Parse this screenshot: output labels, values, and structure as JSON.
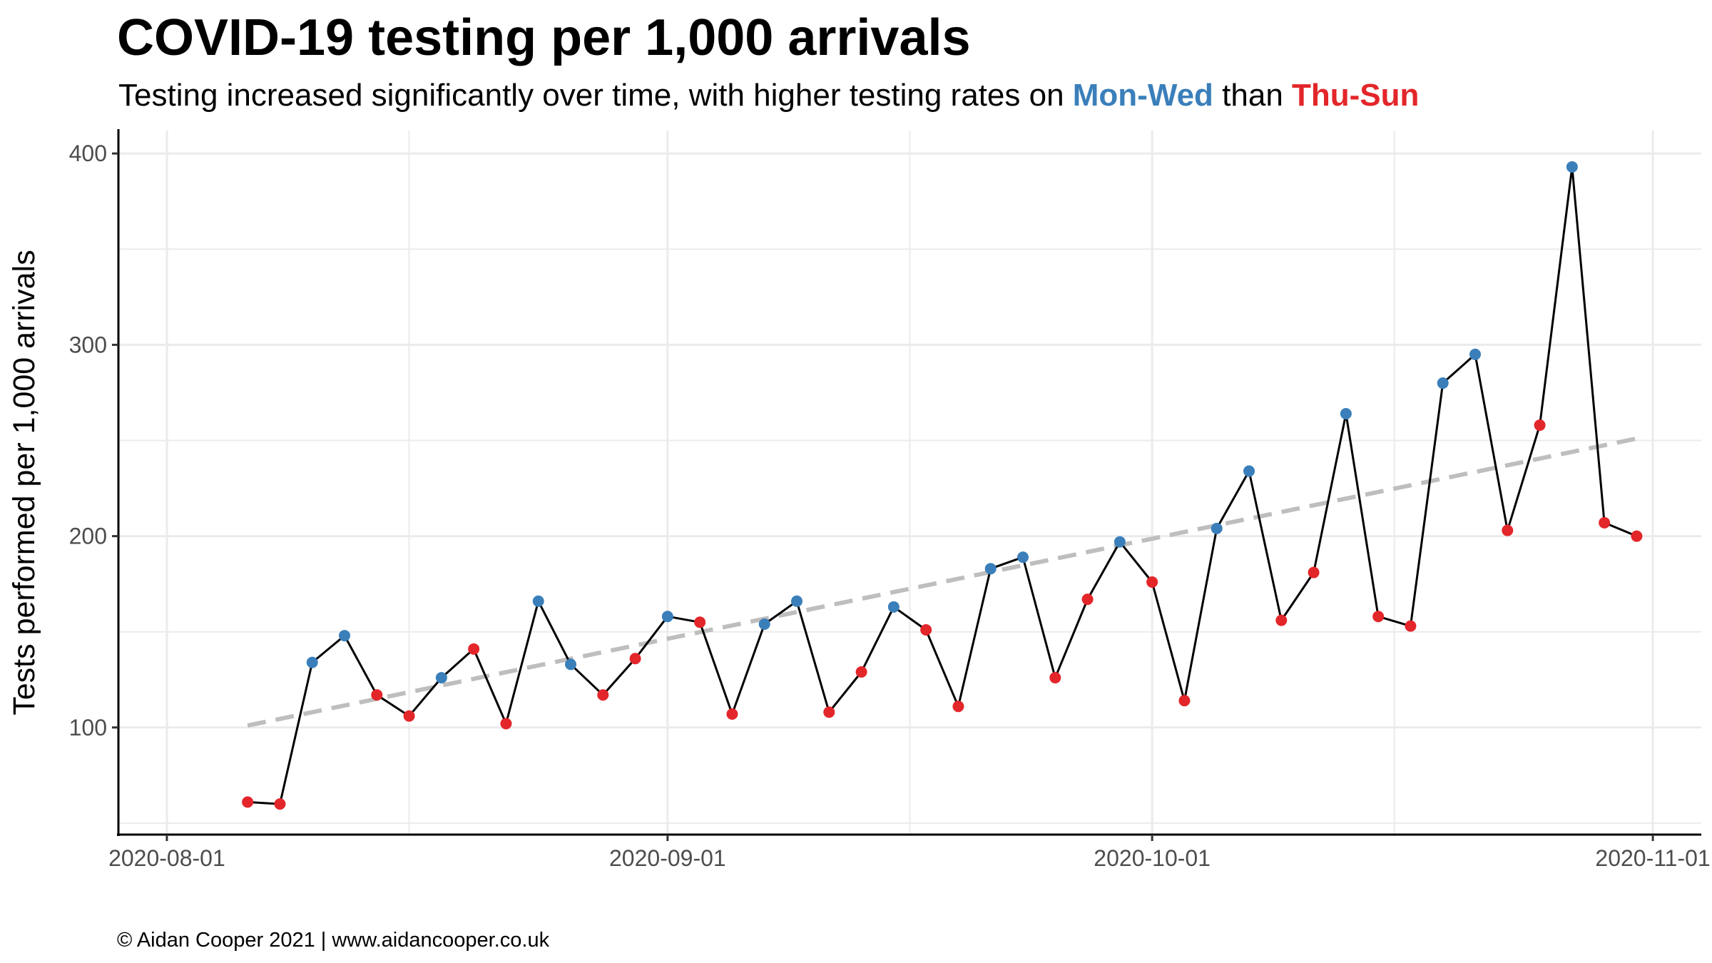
{
  "chart_data": {
    "type": "line",
    "title": "COVID-19 testing per 1,000 arrivals",
    "subtitle": {
      "prefix": "Testing increased significantly over time, with higher testing rates on ",
      "blue": "Mon-Wed",
      "middle": " than ",
      "red": "Thu-Sun"
    },
    "xlabel": "",
    "ylabel": "Tests performed per 1,000 arrivals",
    "caption": "© Aidan Cooper 2021 | www.aidancooper.co.uk",
    "colors": {
      "Mon-Wed": "#3a7fba",
      "Thu-Sun": "#e3262a",
      "line": "#000000",
      "trend": "#bebebe"
    },
    "x_range": [
      "2020-07-29",
      "2020-11-04"
    ],
    "ylim": [
      44,
      412
    ],
    "y_ticks": [
      100,
      200,
      300,
      400
    ],
    "x_ticks": [
      "2020-08-01",
      "2020-09-01",
      "2020-10-01",
      "2020-11-01"
    ],
    "x_minor_ticks": [
      "2020-08-16",
      "2020-08-16",
      "2020-09-16",
      "2020-10-16"
    ],
    "grid": true,
    "points": [
      {
        "date": "2020-08-06",
        "value": 61,
        "group": "Thu-Sun"
      },
      {
        "date": "2020-08-08",
        "value": 60,
        "group": "Thu-Sun"
      },
      {
        "date": "2020-08-10",
        "value": 134,
        "group": "Mon-Wed"
      },
      {
        "date": "2020-08-12",
        "value": 148,
        "group": "Mon-Wed"
      },
      {
        "date": "2020-08-14",
        "value": 117,
        "group": "Thu-Sun"
      },
      {
        "date": "2020-08-16",
        "value": 106,
        "group": "Thu-Sun"
      },
      {
        "date": "2020-08-18",
        "value": 126,
        "group": "Mon-Wed"
      },
      {
        "date": "2020-08-20",
        "value": 141,
        "group": "Thu-Sun"
      },
      {
        "date": "2020-08-22",
        "value": 102,
        "group": "Thu-Sun"
      },
      {
        "date": "2020-08-24",
        "value": 166,
        "group": "Mon-Wed"
      },
      {
        "date": "2020-08-26",
        "value": 133,
        "group": "Mon-Wed"
      },
      {
        "date": "2020-08-28",
        "value": 117,
        "group": "Thu-Sun"
      },
      {
        "date": "2020-08-30",
        "value": 136,
        "group": "Thu-Sun"
      },
      {
        "date": "2020-09-01",
        "value": 158,
        "group": "Mon-Wed"
      },
      {
        "date": "2020-09-03",
        "value": 155,
        "group": "Thu-Sun"
      },
      {
        "date": "2020-09-05",
        "value": 107,
        "group": "Thu-Sun"
      },
      {
        "date": "2020-09-07",
        "value": 154,
        "group": "Mon-Wed"
      },
      {
        "date": "2020-09-09",
        "value": 166,
        "group": "Mon-Wed"
      },
      {
        "date": "2020-09-11",
        "value": 108,
        "group": "Thu-Sun"
      },
      {
        "date": "2020-09-13",
        "value": 129,
        "group": "Thu-Sun"
      },
      {
        "date": "2020-09-15",
        "value": 163,
        "group": "Mon-Wed"
      },
      {
        "date": "2020-09-17",
        "value": 151,
        "group": "Thu-Sun"
      },
      {
        "date": "2020-09-19",
        "value": 111,
        "group": "Thu-Sun"
      },
      {
        "date": "2020-09-21",
        "value": 183,
        "group": "Mon-Wed"
      },
      {
        "date": "2020-09-23",
        "value": 189,
        "group": "Mon-Wed"
      },
      {
        "date": "2020-09-25",
        "value": 126,
        "group": "Thu-Sun"
      },
      {
        "date": "2020-09-27",
        "value": 167,
        "group": "Thu-Sun"
      },
      {
        "date": "2020-09-29",
        "value": 197,
        "group": "Mon-Wed"
      },
      {
        "date": "2020-10-01",
        "value": 176,
        "group": "Thu-Sun"
      },
      {
        "date": "2020-10-03",
        "value": 114,
        "group": "Thu-Sun"
      },
      {
        "date": "2020-10-05",
        "value": 204,
        "group": "Mon-Wed"
      },
      {
        "date": "2020-10-07",
        "value": 234,
        "group": "Mon-Wed"
      },
      {
        "date": "2020-10-09",
        "value": 156,
        "group": "Thu-Sun"
      },
      {
        "date": "2020-10-11",
        "value": 181,
        "group": "Thu-Sun"
      },
      {
        "date": "2020-10-13",
        "value": 264,
        "group": "Mon-Wed"
      },
      {
        "date": "2020-10-15",
        "value": 158,
        "group": "Thu-Sun"
      },
      {
        "date": "2020-10-17",
        "value": 153,
        "group": "Thu-Sun"
      },
      {
        "date": "2020-10-19",
        "value": 280,
        "group": "Mon-Wed"
      },
      {
        "date": "2020-10-21",
        "value": 295,
        "group": "Mon-Wed"
      },
      {
        "date": "2020-10-23",
        "value": 203,
        "group": "Thu-Sun"
      },
      {
        "date": "2020-10-25",
        "value": 258,
        "group": "Thu-Sun"
      },
      {
        "date": "2020-10-27",
        "value": 393,
        "group": "Mon-Wed"
      },
      {
        "date": "2020-10-29",
        "value": 207,
        "group": "Thu-Sun"
      },
      {
        "date": "2020-10-31",
        "value": 200,
        "group": "Thu-Sun"
      }
    ],
    "trend": {
      "style": "dashed",
      "from": {
        "date": "2020-08-06",
        "value": 101
      },
      "to": {
        "date": "2020-10-31",
        "value": 251
      }
    }
  }
}
